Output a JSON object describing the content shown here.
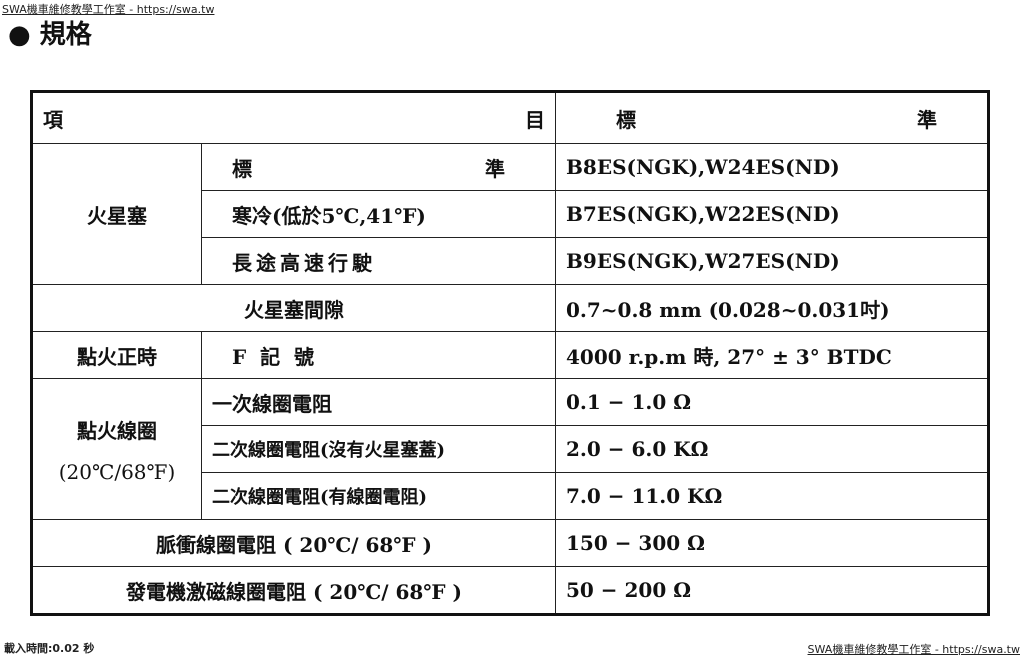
{
  "watermark_top": "SWA機車維修教學工作室 - https://swa.tw",
  "watermark_bottom": "SWA機車維修教學工作室 - https://swa.tw",
  "load_time": "載入時間:0.02 秒",
  "title": "● 規格",
  "header": {
    "item_a": "項",
    "item_b": "目",
    "std_a": "標",
    "std_b": "準"
  },
  "spark_plug": {
    "label": "火星塞",
    "rows": [
      {
        "cond_a": "標",
        "cond_b": "準",
        "value": "B8ES(NGK),W24ES(ND)"
      },
      {
        "cond": "寒冷(低於5℃,41℉)",
        "value": "B7ES(NGK),W22ES(ND)"
      },
      {
        "cond": "長途高速行駛",
        "value": "B9ES(NGK),W27ES(ND)"
      }
    ]
  },
  "gap": {
    "label": "火星塞間隙",
    "value": "0.7~0.8 mm (0.028~0.031吋)"
  },
  "timing": {
    "label": "點火正時",
    "cond": "F  記  號",
    "value": "4000 r.p.m 時, 27° ± 3° BTDC"
  },
  "coil": {
    "label": "點火線圈",
    "sub": "(20℃/68℉)",
    "rows": [
      {
        "cond": "一次線圈電阻",
        "value": "0.1 − 1.0 Ω"
      },
      {
        "cond": "二次線圈電阻(沒有火星塞蓋)",
        "value": "2.0 − 6.0 KΩ"
      },
      {
        "cond": "二次線圈電阻(有線圈電阻)",
        "value": "7.0 − 11.0 KΩ"
      }
    ]
  },
  "pulse": {
    "label": "脈衝線圈電阻 ( 20℃/ 68℉ )",
    "value": "150 − 300 Ω"
  },
  "generator": {
    "label": "發電機激磁線圈電阻 ( 20℃/ 68℉ )",
    "value": "50 − 200 Ω"
  }
}
